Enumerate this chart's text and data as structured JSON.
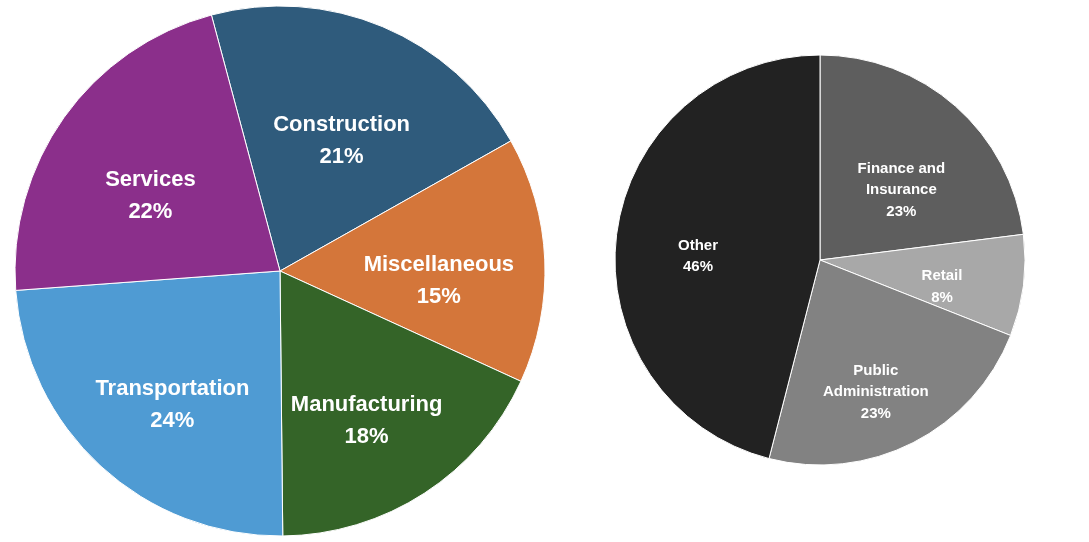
{
  "chart_data": [
    {
      "type": "pie",
      "categories": [
        "Construction",
        "Miscellaneous",
        "Manufacturing",
        "Transportation",
        "Services"
      ],
      "values": [
        21,
        15,
        18,
        24,
        22
      ],
      "value_labels": [
        "21%",
        "15%",
        "18%",
        "24%",
        "22%"
      ],
      "colors": [
        "#2f5b7c",
        "#d4763a",
        "#346428",
        "#4f9bd3",
        "#8b2f8b"
      ]
    },
    {
      "type": "pie",
      "categories": [
        "Finance and Insurance",
        "Retail",
        "Public Administration",
        "Other"
      ],
      "values": [
        23,
        8,
        23,
        46
      ],
      "value_labels": [
        "23%",
        "8%",
        "23%",
        "46%"
      ],
      "colors": [
        "#5e5e5e",
        "#a8a8a8",
        "#828282",
        "#222222"
      ]
    }
  ]
}
